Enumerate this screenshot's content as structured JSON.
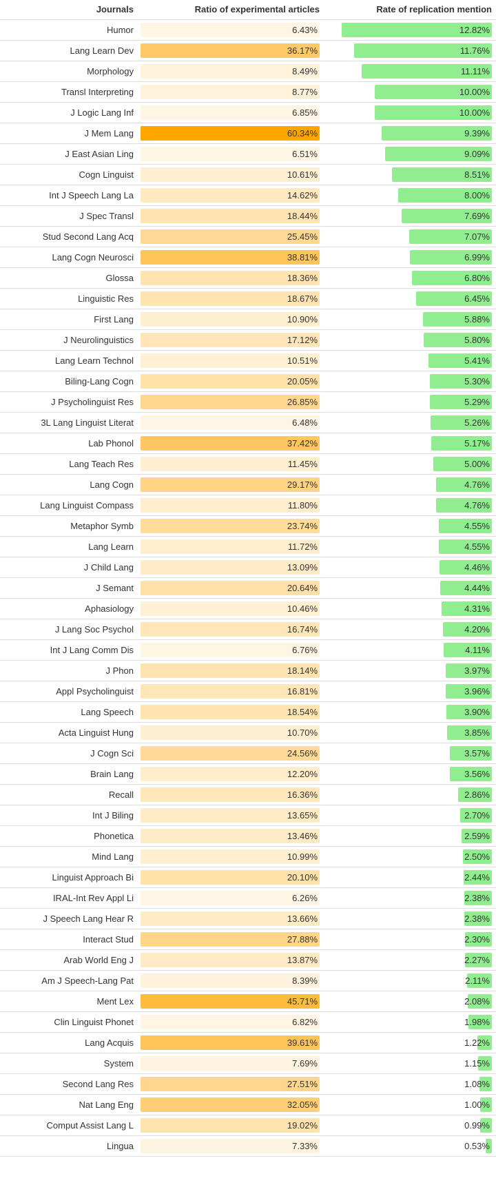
{
  "chart_data": {
    "type": "table",
    "columns": [
      "Journals",
      "Ratio of experimental articles",
      "Rate of replication mention"
    ],
    "ratio_color_scale": {
      "low": "#ffffff",
      "high": "#ffa500",
      "max": 60.34
    },
    "rate_bar_color": "#90ee90",
    "rate_max": 12.82,
    "rows": [
      {
        "journal": "Humor",
        "ratio": 6.43,
        "ratio_label": "6.43%",
        "rate": 12.82,
        "rate_label": "12.82%"
      },
      {
        "journal": "Lang Learn Dev",
        "ratio": 36.17,
        "ratio_label": "36.17%",
        "rate": 11.76,
        "rate_label": "11.76%"
      },
      {
        "journal": "Morphology",
        "ratio": 8.49,
        "ratio_label": "8.49%",
        "rate": 11.11,
        "rate_label": "11.11%"
      },
      {
        "journal": "Transl Interpreting",
        "ratio": 8.77,
        "ratio_label": "8.77%",
        "rate": 10.0,
        "rate_label": "10.00%"
      },
      {
        "journal": "J Logic Lang Inf",
        "ratio": 6.85,
        "ratio_label": "6.85%",
        "rate": 10.0,
        "rate_label": "10.00%"
      },
      {
        "journal": "J Mem Lang",
        "ratio": 60.34,
        "ratio_label": "60.34%",
        "rate": 9.39,
        "rate_label": "9.39%"
      },
      {
        "journal": "J East Asian Ling",
        "ratio": 6.51,
        "ratio_label": "6.51%",
        "rate": 9.09,
        "rate_label": "9.09%"
      },
      {
        "journal": "Cogn Linguist",
        "ratio": 10.61,
        "ratio_label": "10.61%",
        "rate": 8.51,
        "rate_label": "8.51%"
      },
      {
        "journal": "Int J Speech Lang La",
        "ratio": 14.62,
        "ratio_label": "14.62%",
        "rate": 8.0,
        "rate_label": "8.00%"
      },
      {
        "journal": "J Spec Transl",
        "ratio": 18.44,
        "ratio_label": "18.44%",
        "rate": 7.69,
        "rate_label": "7.69%"
      },
      {
        "journal": "Stud Second Lang Acq",
        "ratio": 25.45,
        "ratio_label": "25.45%",
        "rate": 7.07,
        "rate_label": "7.07%"
      },
      {
        "journal": "Lang Cogn Neurosci",
        "ratio": 38.81,
        "ratio_label": "38.81%",
        "rate": 6.99,
        "rate_label": "6.99%"
      },
      {
        "journal": "Glossa",
        "ratio": 18.36,
        "ratio_label": "18.36%",
        "rate": 6.8,
        "rate_label": "6.80%"
      },
      {
        "journal": "Linguistic Res",
        "ratio": 18.67,
        "ratio_label": "18.67%",
        "rate": 6.45,
        "rate_label": "6.45%"
      },
      {
        "journal": "First Lang",
        "ratio": 10.9,
        "ratio_label": "10.90%",
        "rate": 5.88,
        "rate_label": "5.88%"
      },
      {
        "journal": "J Neurolinguistics",
        "ratio": 17.12,
        "ratio_label": "17.12%",
        "rate": 5.8,
        "rate_label": "5.80%"
      },
      {
        "journal": "Lang Learn Technol",
        "ratio": 10.51,
        "ratio_label": "10.51%",
        "rate": 5.41,
        "rate_label": "5.41%"
      },
      {
        "journal": "Biling-Lang Cogn",
        "ratio": 20.05,
        "ratio_label": "20.05%",
        "rate": 5.3,
        "rate_label": "5.30%"
      },
      {
        "journal": "J Psycholinguist Res",
        "ratio": 26.85,
        "ratio_label": "26.85%",
        "rate": 5.29,
        "rate_label": "5.29%"
      },
      {
        "journal": "3L Lang Linguist Literat",
        "ratio": 6.48,
        "ratio_label": "6.48%",
        "rate": 5.26,
        "rate_label": "5.26%"
      },
      {
        "journal": "Lab Phonol",
        "ratio": 37.42,
        "ratio_label": "37.42%",
        "rate": 5.17,
        "rate_label": "5.17%"
      },
      {
        "journal": "Lang Teach Res",
        "ratio": 11.45,
        "ratio_label": "11.45%",
        "rate": 5.0,
        "rate_label": "5.00%"
      },
      {
        "journal": "Lang Cogn",
        "ratio": 29.17,
        "ratio_label": "29.17%",
        "rate": 4.76,
        "rate_label": "4.76%"
      },
      {
        "journal": "Lang Linguist Compass",
        "ratio": 11.8,
        "ratio_label": "11.80%",
        "rate": 4.76,
        "rate_label": "4.76%"
      },
      {
        "journal": "Metaphor Symb",
        "ratio": 23.74,
        "ratio_label": "23.74%",
        "rate": 4.55,
        "rate_label": "4.55%"
      },
      {
        "journal": "Lang Learn",
        "ratio": 11.72,
        "ratio_label": "11.72%",
        "rate": 4.55,
        "rate_label": "4.55%"
      },
      {
        "journal": "J Child Lang",
        "ratio": 13.09,
        "ratio_label": "13.09%",
        "rate": 4.46,
        "rate_label": "4.46%"
      },
      {
        "journal": "J Semant",
        "ratio": 20.64,
        "ratio_label": "20.64%",
        "rate": 4.44,
        "rate_label": "4.44%"
      },
      {
        "journal": "Aphasiology",
        "ratio": 10.46,
        "ratio_label": "10.46%",
        "rate": 4.31,
        "rate_label": "4.31%"
      },
      {
        "journal": "J Lang Soc Psychol",
        "ratio": 16.74,
        "ratio_label": "16.74%",
        "rate": 4.2,
        "rate_label": "4.20%"
      },
      {
        "journal": "Int J Lang Comm Dis",
        "ratio": 6.76,
        "ratio_label": "6.76%",
        "rate": 4.11,
        "rate_label": "4.11%"
      },
      {
        "journal": "J Phon",
        "ratio": 18.14,
        "ratio_label": "18.14%",
        "rate": 3.97,
        "rate_label": "3.97%"
      },
      {
        "journal": "Appl Psycholinguist",
        "ratio": 16.81,
        "ratio_label": "16.81%",
        "rate": 3.96,
        "rate_label": "3.96%"
      },
      {
        "journal": "Lang Speech",
        "ratio": 18.54,
        "ratio_label": "18.54%",
        "rate": 3.9,
        "rate_label": "3.90%"
      },
      {
        "journal": "Acta Linguist Hung",
        "ratio": 10.7,
        "ratio_label": "10.70%",
        "rate": 3.85,
        "rate_label": "3.85%"
      },
      {
        "journal": "J Cogn Sci",
        "ratio": 24.56,
        "ratio_label": "24.56%",
        "rate": 3.57,
        "rate_label": "3.57%"
      },
      {
        "journal": "Brain Lang",
        "ratio": 12.2,
        "ratio_label": "12.20%",
        "rate": 3.56,
        "rate_label": "3.56%"
      },
      {
        "journal": "Recall",
        "ratio": 16.36,
        "ratio_label": "16.36%",
        "rate": 2.86,
        "rate_label": "2.86%"
      },
      {
        "journal": "Int J Biling",
        "ratio": 13.65,
        "ratio_label": "13.65%",
        "rate": 2.7,
        "rate_label": "2.70%"
      },
      {
        "journal": "Phonetica",
        "ratio": 13.46,
        "ratio_label": "13.46%",
        "rate": 2.59,
        "rate_label": "2.59%"
      },
      {
        "journal": "Mind Lang",
        "ratio": 10.99,
        "ratio_label": "10.99%",
        "rate": 2.5,
        "rate_label": "2.50%"
      },
      {
        "journal": "Linguist Approach Bi",
        "ratio": 20.1,
        "ratio_label": "20.10%",
        "rate": 2.44,
        "rate_label": "2.44%"
      },
      {
        "journal": "IRAL-Int Rev Appl Li",
        "ratio": 6.26,
        "ratio_label": "6.26%",
        "rate": 2.38,
        "rate_label": "2.38%"
      },
      {
        "journal": "J Speech Lang Hear R",
        "ratio": 13.66,
        "ratio_label": "13.66%",
        "rate": 2.38,
        "rate_label": "2.38%"
      },
      {
        "journal": "Interact Stud",
        "ratio": 27.88,
        "ratio_label": "27.88%",
        "rate": 2.3,
        "rate_label": "2.30%"
      },
      {
        "journal": "Arab World Eng J",
        "ratio": 13.87,
        "ratio_label": "13.87%",
        "rate": 2.27,
        "rate_label": "2.27%"
      },
      {
        "journal": "Am J Speech-Lang Pat",
        "ratio": 8.39,
        "ratio_label": "8.39%",
        "rate": 2.11,
        "rate_label": "2.11%"
      },
      {
        "journal": "Ment Lex",
        "ratio": 45.71,
        "ratio_label": "45.71%",
        "rate": 2.08,
        "rate_label": "2.08%"
      },
      {
        "journal": "Clin Linguist Phonet",
        "ratio": 6.82,
        "ratio_label": "6.82%",
        "rate": 1.98,
        "rate_label": "1.98%"
      },
      {
        "journal": "Lang Acquis",
        "ratio": 39.61,
        "ratio_label": "39.61%",
        "rate": 1.22,
        "rate_label": "1.22%"
      },
      {
        "journal": "System",
        "ratio": 7.69,
        "ratio_label": "7.69%",
        "rate": 1.15,
        "rate_label": "1.15%"
      },
      {
        "journal": "Second Lang Res",
        "ratio": 27.51,
        "ratio_label": "27.51%",
        "rate": 1.08,
        "rate_label": "1.08%"
      },
      {
        "journal": "Nat Lang Eng",
        "ratio": 32.05,
        "ratio_label": "32.05%",
        "rate": 1.0,
        "rate_label": "1.00%"
      },
      {
        "journal": "Comput Assist Lang L",
        "ratio": 19.02,
        "ratio_label": "19.02%",
        "rate": 0.99,
        "rate_label": "0.99%"
      },
      {
        "journal": "Lingua",
        "ratio": 7.33,
        "ratio_label": "7.33%",
        "rate": 0.53,
        "rate_label": "0.53%"
      }
    ]
  }
}
